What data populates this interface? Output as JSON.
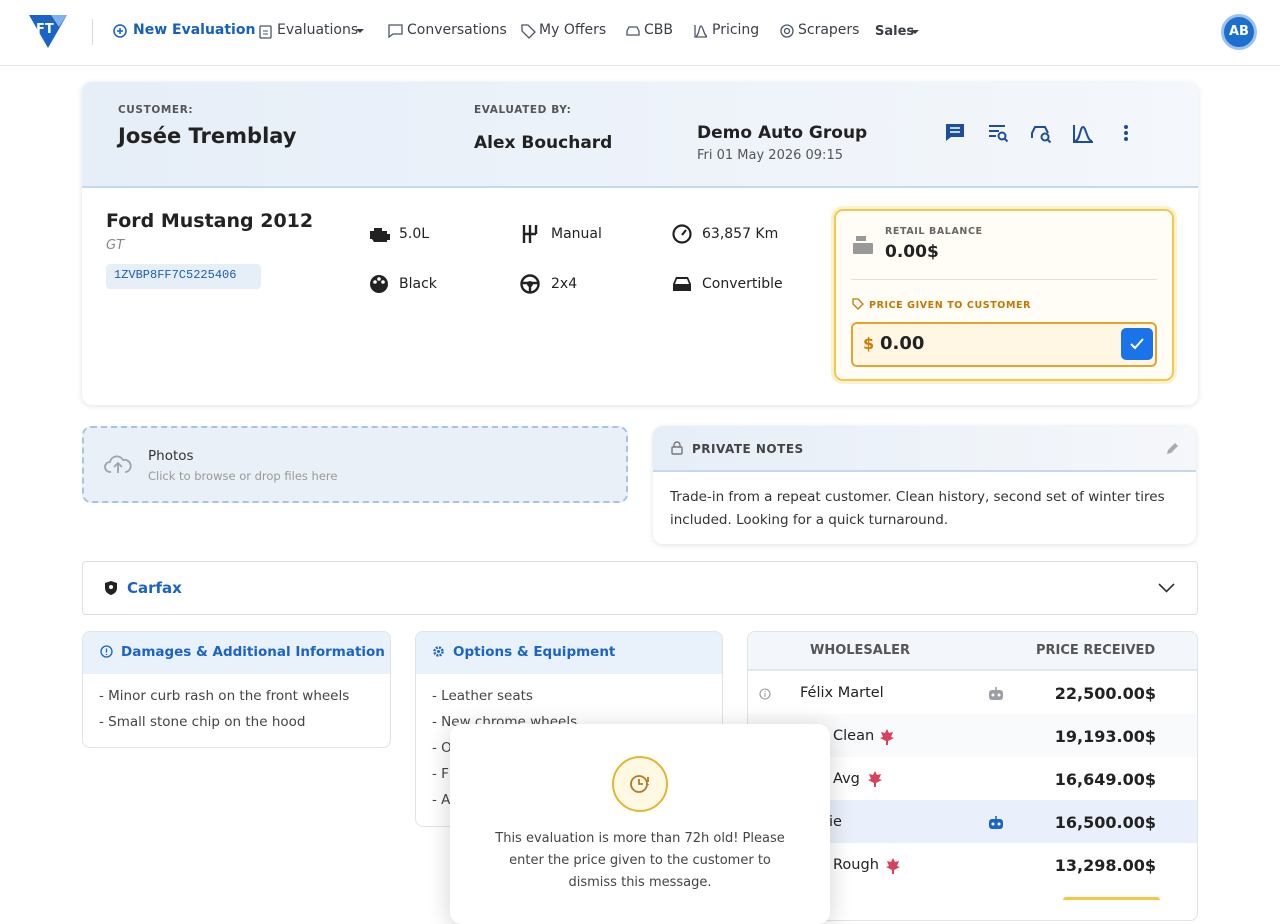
{
  "nav": {
    "logo": "FT",
    "items": [
      "New Evaluation",
      "Evaluations",
      "Conversations",
      "My Offers",
      "CBB",
      "Pricing",
      "Scrapers",
      "Sales"
    ],
    "avatar": "AB"
  },
  "header": {
    "customer_label": "CUSTOMER:",
    "customer": "Josée Tremblay",
    "evaluated_by_label": "EVALUATED BY:",
    "evaluator": "Alex Bouchard",
    "dealer": "Demo Auto Group",
    "date": "Fri 01 May 2026 09:15"
  },
  "vehicle": {
    "title": "Ford Mustang 2012",
    "trim": "GT",
    "vin": "1ZVBP8FF7C5225406",
    "specs": [
      "5.0L",
      "Manual",
      "63,857 Km",
      "Black",
      "2x4",
      "Convertible"
    ]
  },
  "balance": {
    "retail_label": "RETAIL BALANCE",
    "retail_value": "0.00$",
    "price_label": "PRICE GIVEN TO CUSTOMER",
    "currency": "$",
    "price_input": "0.00"
  },
  "photos": {
    "title": "Photos",
    "hint": "Click to browse or drop files here"
  },
  "notes": {
    "title": "PRIVATE NOTES",
    "text": "Trade-in from a repeat customer. Clean history, second set of winter tires included. Looking for a quick turnaround."
  },
  "carfax": {
    "title": "Carfax"
  },
  "damages": {
    "title": "Damages & Additional Information",
    "items": [
      "- Minor curb rash on the front wheels",
      "- Small stone chip on the hood"
    ]
  },
  "options": {
    "title": "Options & Equipment",
    "items": [
      "- Leather seats",
      "- New chrome wheels",
      "- O",
      "- F",
      "- A"
    ]
  },
  "wholesalers": {
    "headers": [
      "WHOLESALER",
      "PRICE RECEIVED"
    ],
    "rows": [
      [
        "Félix Martel",
        "22,500.00$"
      ],
      [
        "Clean",
        "19,193.00$"
      ],
      [
        "Avg",
        "16,649.00$"
      ],
      [
        "ie",
        "16,500.00$"
      ],
      [
        "Rough",
        "13,298.00$"
      ]
    ]
  },
  "modal": {
    "text": "This evaluation is more than 72h old! Please enter the price given to the customer to dismiss this message."
  }
}
